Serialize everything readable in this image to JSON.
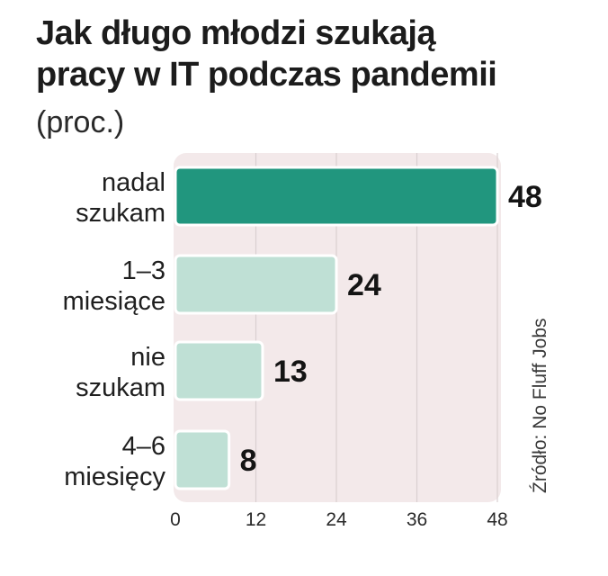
{
  "chart_data": {
    "type": "bar",
    "orientation": "horizontal",
    "title": "Jak długo młodzi szukają pracy w IT podczas pandemii",
    "title_lines": [
      "Jak długo młodzi szukają",
      "pracy w IT podczas pandemii"
    ],
    "subtitle": "(proc.)",
    "source": "Źródło: No Fluff Jobs",
    "categories": [
      "nadal szukam",
      "1–3 miesiące",
      "nie szukam",
      "4–6 miesięcy"
    ],
    "category_lines": [
      [
        "nadal",
        "szukam"
      ],
      [
        "1–3",
        "miesiące"
      ],
      [
        "nie",
        "szukam"
      ],
      [
        "4–6",
        "miesięcy"
      ]
    ],
    "values": [
      48,
      24,
      13,
      8
    ],
    "value_labels": [
      "48",
      "24",
      "13",
      "8"
    ],
    "xlim": [
      0,
      48
    ],
    "xticks": [
      0,
      12,
      24,
      36,
      48
    ],
    "tick_labels": [
      "0",
      "12",
      "24",
      "36",
      "48"
    ],
    "grid": true,
    "colors": {
      "highlight_bar": "#21967e",
      "bar": "#bfe0d5",
      "bar_stroke": "#ffffff",
      "plot_background": "#f3e9ea",
      "grid": "#d9cfd0"
    }
  }
}
